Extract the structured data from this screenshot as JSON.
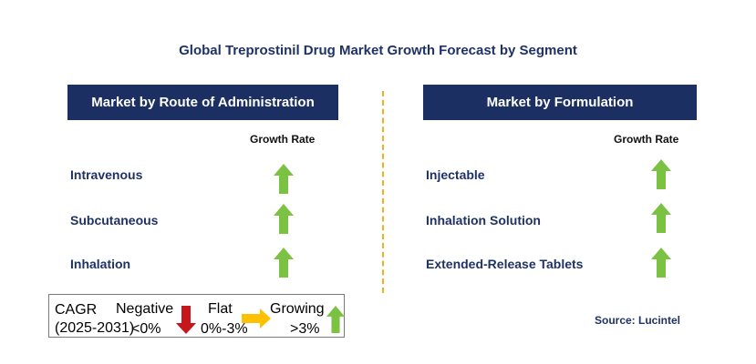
{
  "title": "Global Treprostinil Drug Market Growth Forecast by Segment",
  "left_panel": {
    "header": "Market by Route of Administration",
    "growth_label": "Growth Rate",
    "rows": [
      {
        "label": "Intravenous",
        "trend": "growing"
      },
      {
        "label": "Subcutaneous",
        "trend": "growing"
      },
      {
        "label": "Inhalation",
        "trend": "growing"
      }
    ]
  },
  "right_panel": {
    "header": "Market by Formulation",
    "growth_label": "Growth Rate",
    "rows": [
      {
        "label": "Injectable",
        "trend": "growing"
      },
      {
        "label": "Inhalation Solution",
        "trend": "growing"
      },
      {
        "label": "Extended-Release Tablets",
        "trend": "growing"
      }
    ]
  },
  "legend": {
    "cagr_label": "CAGR",
    "period": "(2025-2031)",
    "negative_label": "Negative",
    "negative_range": "<0%",
    "flat_label": "Flat",
    "flat_range": "0%-3%",
    "growing_label": "Growing",
    "growing_range": ">3%"
  },
  "source": "Source: Lucintel",
  "colors": {
    "header_bg": "#1c2f62",
    "growing_arrow": "#7cc242",
    "negative_arrow": "#c8161d",
    "flat_arrow": "#ffc000",
    "divider": "#f0b020"
  }
}
